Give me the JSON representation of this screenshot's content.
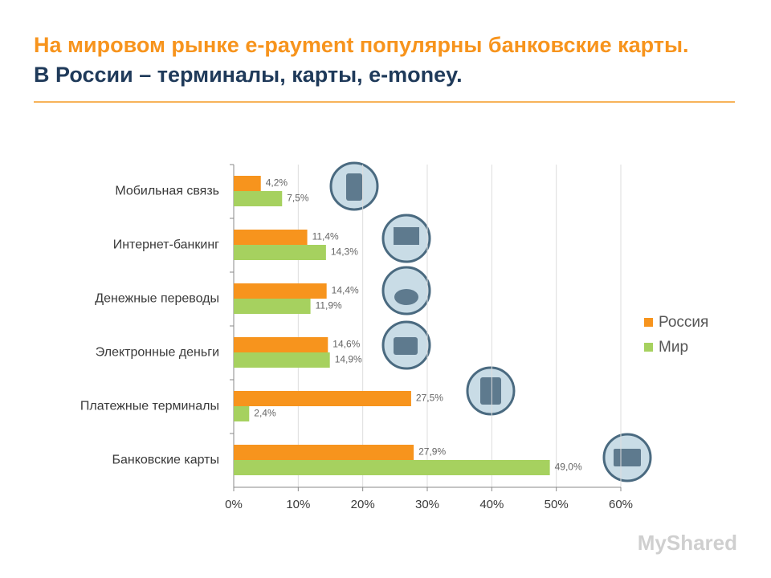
{
  "chart_data": {
    "type": "hbar",
    "title": "На мировом рынке e-payment популярны банковские карты.",
    "subtitle": "В России – терминалы, карты, e-money.",
    "categories": [
      "Мобильная связь",
      "Интернет-банкинг",
      "Денежные переводы",
      "Электронные деньги",
      "Платежные терминалы",
      "Банковские карты"
    ],
    "series": [
      {
        "name": "Россия",
        "color": "#f7941d",
        "values": [
          4.2,
          11.4,
          14.4,
          14.6,
          27.5,
          27.9
        ],
        "value_labels": [
          "4,2%",
          "11,4%",
          "14,4%",
          "14,6%",
          "27,5%",
          "27,9%"
        ]
      },
      {
        "name": "Мир",
        "color": "#a6d15f",
        "values": [
          7.5,
          14.3,
          11.9,
          14.9,
          2.4,
          49.0
        ],
        "value_labels": [
          "7,5%",
          "14,3%",
          "11,9%",
          "14,9%",
          "2,4%",
          "49,0%"
        ]
      }
    ],
    "xlim": [
      0,
      60
    ],
    "xticks": [
      {
        "value": 0,
        "label": "0%"
      },
      {
        "value": 10,
        "label": "10%"
      },
      {
        "value": 20,
        "label": "20%"
      },
      {
        "value": 30,
        "label": "30%"
      },
      {
        "value": 40,
        "label": "40%"
      },
      {
        "value": 50,
        "label": "50%"
      },
      {
        "value": 60,
        "label": "60%"
      }
    ],
    "grid": true,
    "legend": "right",
    "watermark": "MyShared"
  }
}
